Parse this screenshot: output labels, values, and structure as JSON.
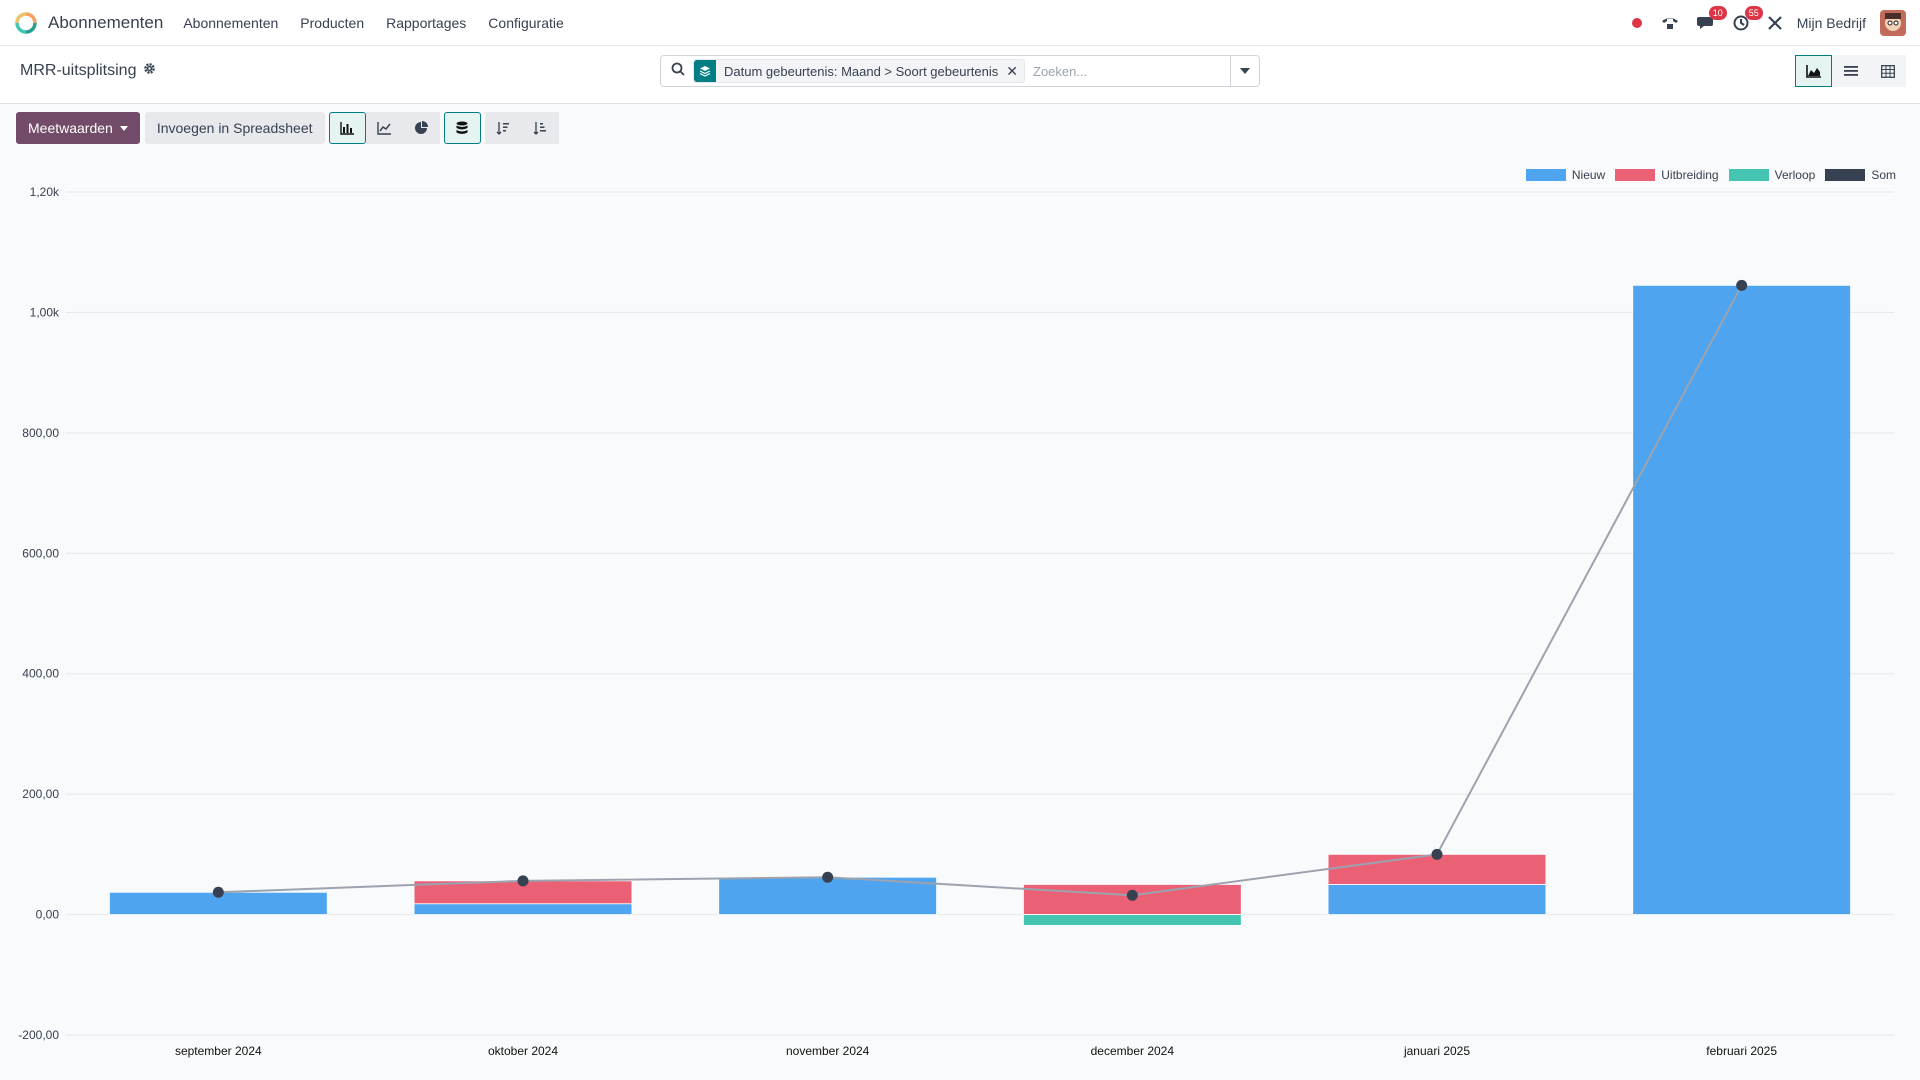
{
  "navbar": {
    "app_name": "Abonnementen",
    "menu": [
      "Abonnementen",
      "Producten",
      "Rapportages",
      "Configuratie"
    ],
    "chat_badge": "10",
    "activity_badge": "55",
    "company": "Mijn Bedrijf"
  },
  "control": {
    "breadcrumb": "MRR-uitsplitsing",
    "facet": "Datum gebeurtenis: Maand > Soort gebeurtenis",
    "search_placeholder": "Zoeken..."
  },
  "toolbar": {
    "measures_label": "Meetwaarden",
    "spreadsheet_label": "Invoegen in Spreadsheet"
  },
  "colors": {
    "nieuw": "#4ea4ee",
    "uitbreiding": "#ea6175",
    "verloop": "#43c5b1",
    "som": "#374151",
    "brand": "#714b67",
    "accent": "#017e84"
  },
  "chart_data": {
    "type": "bar",
    "stacked": true,
    "categories": [
      "september 2024",
      "oktober 2024",
      "november 2024",
      "december 2024",
      "januari 2025",
      "februari 2025"
    ],
    "series": [
      {
        "name": "Nieuw",
        "type": "bar",
        "values": [
          37,
          18,
          62,
          0,
          50,
          1045
        ]
      },
      {
        "name": "Uitbreiding",
        "type": "bar",
        "values": [
          0,
          38,
          0,
          50,
          50,
          0
        ]
      },
      {
        "name": "Verloop",
        "type": "bar",
        "values": [
          0,
          0,
          0,
          -18,
          0,
          0
        ]
      },
      {
        "name": "Som",
        "type": "line",
        "values": [
          37,
          56,
          62,
          32,
          100,
          1045
        ]
      }
    ],
    "yticks": [
      "1,20k",
      "1,00k",
      "800,00",
      "600,00",
      "400,00",
      "200,00",
      "0,00",
      "-200,00"
    ],
    "ylim": [
      -200,
      1200
    ],
    "grid": true,
    "legend": "top-right"
  }
}
